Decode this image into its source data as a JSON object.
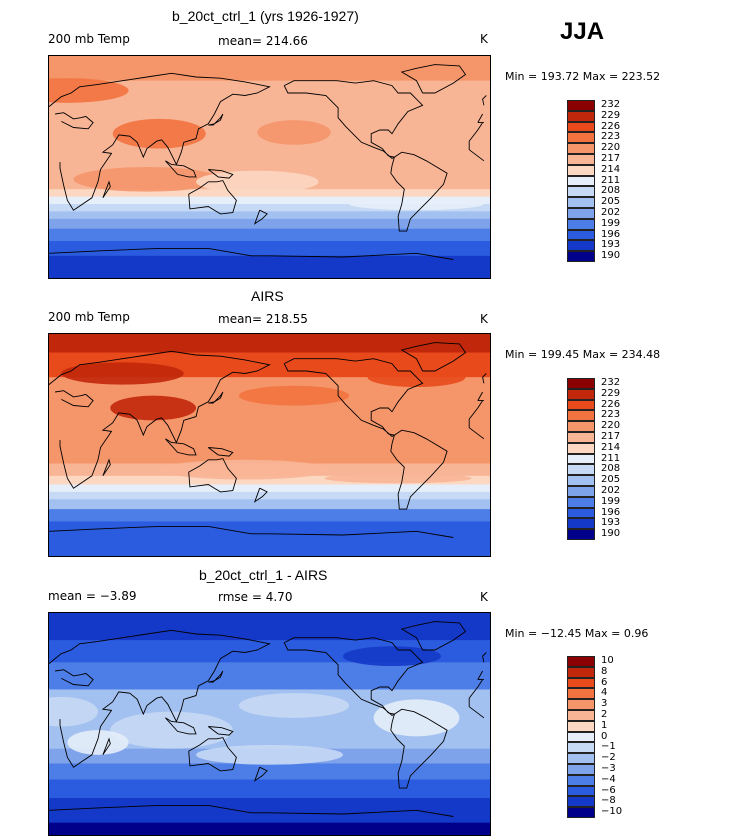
{
  "season": "JJA",
  "panels": [
    {
      "title": "b_20ct_ctrl_1 (yrs 1926-1927)",
      "left_label": "200 mb Temp",
      "mid_label": "mean= 214.66",
      "unit": "K",
      "minmax": "Min = 193.72 Max = 223.52",
      "levels": [
        "232",
        "229",
        "226",
        "223",
        "220",
        "217",
        "214",
        "211",
        "208",
        "205",
        "202",
        "199",
        "196",
        "193",
        "190"
      ],
      "field_type": "temperature"
    },
    {
      "title": "AIRS",
      "left_label": "200 mb Temp",
      "mid_label": "mean= 218.55",
      "unit": "K",
      "minmax": "Min = 199.45 Max = 234.48",
      "levels": [
        "232",
        "229",
        "226",
        "223",
        "220",
        "217",
        "214",
        "211",
        "208",
        "205",
        "202",
        "199",
        "196",
        "193",
        "190"
      ],
      "field_type": "temperature_obs"
    },
    {
      "title": "b_20ct_ctrl_1 - AIRS",
      "left_label": "mean =  −3.89",
      "mid_label": "rmse =   4.70",
      "unit": "K",
      "minmax": "Min = −12.45 Max =   0.96",
      "levels": [
        "10",
        "8",
        "6",
        "4",
        "3",
        "2",
        "1",
        "0",
        "−1",
        "−2",
        "−3",
        "−4",
        "−6",
        "−8",
        "−10"
      ],
      "field_type": "difference"
    }
  ],
  "colors": [
    "#8b0000",
    "#c1270a",
    "#e84a1c",
    "#f2733f",
    "#f5956a",
    "#f8b596",
    "#fcd7c1",
    "#e6eefa",
    "#c6d9f5",
    "#a3c1f0",
    "#7fa3ea",
    "#4d7de6",
    "#2b5ce0",
    "#1438c8",
    "#00008b"
  ],
  "icons": [
    "world-coastline-map"
  ]
}
